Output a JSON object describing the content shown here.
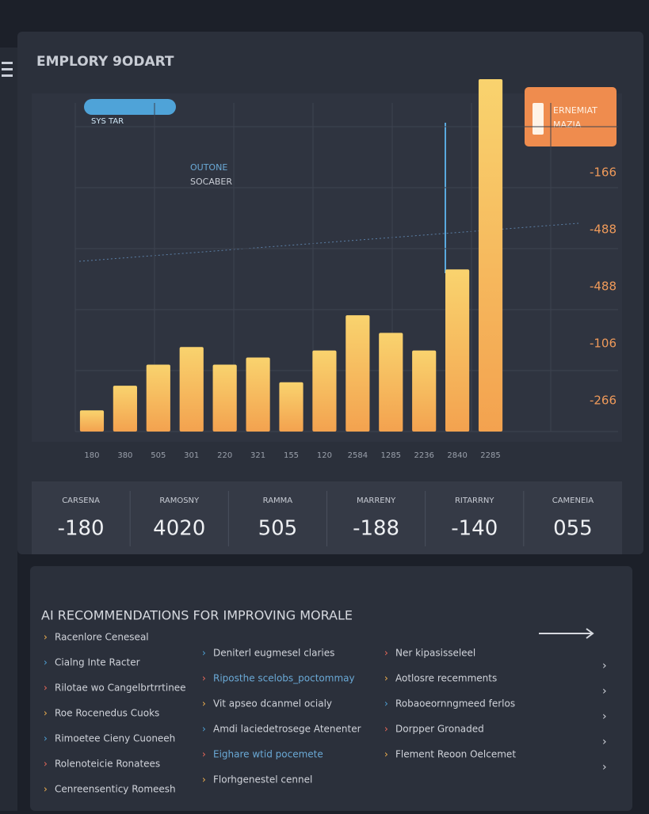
{
  "header": {
    "title": "EMPLORY 9ODART"
  },
  "chart_data": {
    "type": "bar",
    "pill": "SYS TAR",
    "note": [
      "OUTONE",
      "SOCABER"
    ],
    "callout": [
      "ERNEMIAT",
      "MAZIA"
    ],
    "side_labels": [
      "-166",
      "-488",
      "-488",
      "-106",
      "-266"
    ],
    "categories": [
      "180",
      "380",
      "505",
      "301",
      "220",
      "321",
      "155",
      "120",
      "2584",
      "1285",
      "2236",
      "2840",
      "2285"
    ],
    "values": [
      6,
      13,
      19,
      24,
      19,
      21,
      14,
      23,
      33,
      28,
      23,
      46,
      100
    ],
    "color": "#f7c266",
    "ylim": [
      0,
      100
    ]
  },
  "stats": [
    {
      "label": "CARSENA",
      "value": "-180"
    },
    {
      "label": "RAMOSNY",
      "value": "4020"
    },
    {
      "label": "RAMMA",
      "value": "505"
    },
    {
      "label": "MARRENY",
      "value": "-188"
    },
    {
      "label": "RITARRNY",
      "value": "-140"
    },
    {
      "label": "CAMENEIA",
      "value": "055"
    }
  ],
  "recommendations": {
    "title": "AI RECOMMENDATIONS FOR IMPROVING MORALE",
    "columns": [
      [
        "Racenlore Ceneseal",
        "Cialng Inte Racter",
        "Rilotae wo Cangelbrtrrtinee",
        "Roe Rocenedus Cuoks",
        "Rimoetee Cieny Cuoneeh",
        "Rolenoteicie Ronatees",
        "Cenreensenticy Romeesh"
      ],
      [
        "Deniterl eugmesel claries",
        "Riposthe scelobs_poctommay",
        "Vit apseo dcanmel ocialy",
        "Amdi laciedetrosege Atenenter",
        "Eighare wtid pocemete",
        "Florhgenestel cennel"
      ],
      [
        "Ner kipasisseleel",
        "Aotlosre recemments",
        "Robaoeornngmeed ferlos",
        "Dorpper Gronaded",
        "Flement Reoon Oelcemet"
      ]
    ]
  }
}
